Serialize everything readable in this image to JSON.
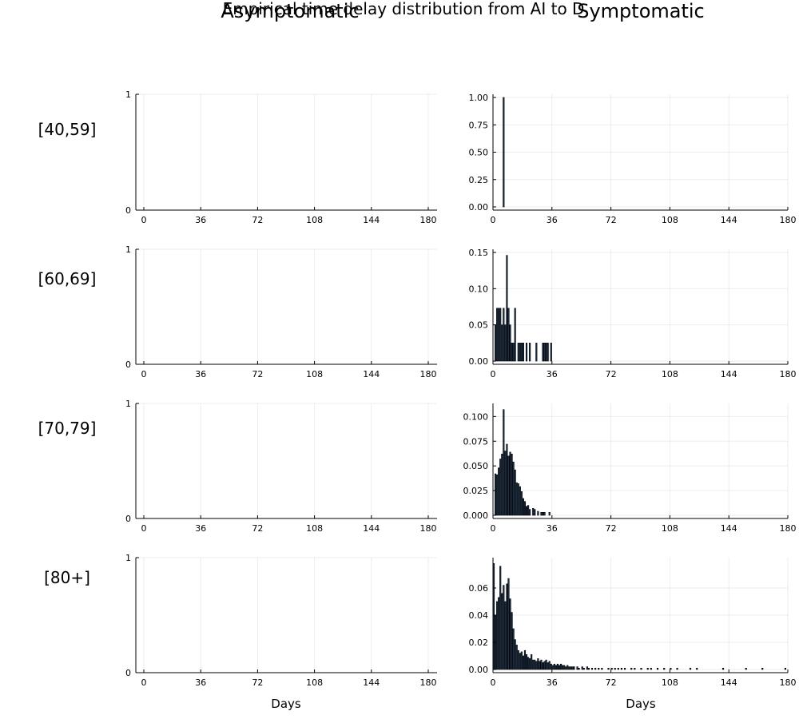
{
  "chart_data": {
    "type": "bar",
    "title": "Empirical time delay distribution from AI to D",
    "column_titles": [
      "Asymptomatic",
      "Symptomatic"
    ],
    "row_labels": [
      "[40,59]",
      "[60,69]",
      "[70,79]",
      "[80+]"
    ],
    "xlabel": "Days",
    "xlim": [
      0,
      180
    ],
    "xticks": [
      0,
      36,
      72,
      108,
      144,
      180
    ],
    "panels": [
      {
        "row": "[40,59]",
        "column": "Asymptomatic",
        "ylim": [
          0,
          1
        ],
        "yticks": [
          0,
          1
        ],
        "ytick_labels": [
          "0",
          "1"
        ],
        "bars": []
      },
      {
        "row": "[40,59]",
        "column": "Symptomatic",
        "ylim": [
          0,
          1.0
        ],
        "yticks": [
          0,
          0.25,
          0.5,
          0.75,
          1.0
        ],
        "ytick_labels": [
          "0.00",
          "0.25",
          "0.50",
          "0.75",
          "1.00"
        ],
        "bars": [
          [
            6,
            1.0
          ]
        ]
      },
      {
        "row": "[60,69]",
        "column": "Asymptomatic",
        "ylim": [
          0,
          1
        ],
        "yticks": [
          0,
          1
        ],
        "ytick_labels": [
          "0",
          "1"
        ],
        "bars": []
      },
      {
        "row": "[60,69]",
        "column": "Symptomatic",
        "ylim": [
          0,
          0.15
        ],
        "yticks": [
          0,
          0.05,
          0.1,
          0.15
        ],
        "ytick_labels": [
          "0.00",
          "0.05",
          "0.10",
          "0.15"
        ],
        "bars": [
          [
            1,
            0.05
          ],
          [
            2,
            0.073
          ],
          [
            3,
            0.073
          ],
          [
            4,
            0.073
          ],
          [
            5,
            0.05
          ],
          [
            6,
            0.073
          ],
          [
            7,
            0.05
          ],
          [
            8,
            0.146
          ],
          [
            9,
            0.073
          ],
          [
            10,
            0.05
          ],
          [
            11,
            0.025
          ],
          [
            12,
            0.025
          ],
          [
            13,
            0.073
          ],
          [
            15,
            0.025
          ],
          [
            16,
            0.025
          ],
          [
            17,
            0.025
          ],
          [
            18,
            0.025
          ],
          [
            20,
            0.025
          ],
          [
            22,
            0.025
          ],
          [
            26,
            0.025
          ],
          [
            30,
            0.025
          ],
          [
            31,
            0.025
          ],
          [
            32,
            0.025
          ],
          [
            33,
            0.025
          ],
          [
            35,
            0.025
          ]
        ]
      },
      {
        "row": "[70,79]",
        "column": "Asymptomatic",
        "ylim": [
          0,
          1
        ],
        "yticks": [
          0,
          1
        ],
        "ytick_labels": [
          "0",
          "1"
        ],
        "bars": []
      },
      {
        "row": "[70,79]",
        "column": "Symptomatic",
        "ylim": [
          0,
          0.11
        ],
        "yticks": [
          0,
          0.025,
          0.05,
          0.075,
          0.1
        ],
        "ytick_labels": [
          "0.000",
          "0.025",
          "0.050",
          "0.075",
          "0.100"
        ],
        "bars": [
          [
            1,
            0.042
          ],
          [
            2,
            0.041
          ],
          [
            3,
            0.048
          ],
          [
            4,
            0.057
          ],
          [
            5,
            0.062
          ],
          [
            6,
            0.107
          ],
          [
            7,
            0.065
          ],
          [
            8,
            0.072
          ],
          [
            9,
            0.06
          ],
          [
            10,
            0.064
          ],
          [
            11,
            0.062
          ],
          [
            12,
            0.054
          ],
          [
            13,
            0.046
          ],
          [
            14,
            0.033
          ],
          [
            15,
            0.032
          ],
          [
            16,
            0.029
          ],
          [
            17,
            0.024
          ],
          [
            18,
            0.017
          ],
          [
            19,
            0.014
          ],
          [
            20,
            0.009
          ],
          [
            21,
            0.01
          ],
          [
            22,
            0.006
          ],
          [
            24,
            0.007
          ],
          [
            25,
            0.006
          ],
          [
            27,
            0.004
          ],
          [
            29,
            0.003
          ],
          [
            30,
            0.003
          ],
          [
            31,
            0.003
          ],
          [
            34,
            0.003
          ]
        ]
      },
      {
        "row": "[80+]",
        "column": "Asymptomatic",
        "ylim": [
          0,
          1
        ],
        "yticks": [
          0,
          1
        ],
        "ytick_labels": [
          "0",
          "1"
        ],
        "bars": []
      },
      {
        "row": "[80+]",
        "column": "Symptomatic",
        "ylim": [
          0,
          0.08
        ],
        "yticks": [
          0,
          0.02,
          0.04,
          0.06
        ],
        "ytick_labels": [
          "0.00",
          "0.02",
          "0.04",
          "0.06"
        ],
        "bars": [
          [
            0,
            0.078
          ],
          [
            1,
            0.04
          ],
          [
            2,
            0.05
          ],
          [
            3,
            0.053
          ],
          [
            4,
            0.076
          ],
          [
            5,
            0.056
          ],
          [
            6,
            0.062
          ],
          [
            7,
            0.05
          ],
          [
            8,
            0.063
          ],
          [
            9,
            0.067
          ],
          [
            10,
            0.052
          ],
          [
            11,
            0.042
          ],
          [
            12,
            0.03
          ],
          [
            13,
            0.022
          ],
          [
            14,
            0.018
          ],
          [
            15,
            0.014
          ],
          [
            16,
            0.012
          ],
          [
            17,
            0.013
          ],
          [
            18,
            0.01
          ],
          [
            19,
            0.014
          ],
          [
            20,
            0.011
          ],
          [
            21,
            0.009
          ],
          [
            22,
            0.008
          ],
          [
            23,
            0.011
          ],
          [
            24,
            0.007
          ],
          [
            25,
            0.007
          ],
          [
            26,
            0.006
          ],
          [
            27,
            0.008
          ],
          [
            28,
            0.006
          ],
          [
            29,
            0.007
          ],
          [
            30,
            0.005
          ],
          [
            31,
            0.006
          ],
          [
            32,
            0.007
          ],
          [
            33,
            0.005
          ],
          [
            34,
            0.006
          ],
          [
            35,
            0.004
          ],
          [
            36,
            0.003
          ],
          [
            37,
            0.004
          ],
          [
            38,
            0.003
          ],
          [
            39,
            0.004
          ],
          [
            40,
            0.003
          ],
          [
            41,
            0.004
          ],
          [
            42,
            0.003
          ],
          [
            43,
            0.003
          ],
          [
            44,
            0.002
          ],
          [
            45,
            0.003
          ],
          [
            46,
            0.002
          ],
          [
            47,
            0.002
          ],
          [
            48,
            0.002
          ],
          [
            49,
            0.002
          ],
          [
            51,
            0.002
          ],
          [
            52,
            0.001
          ],
          [
            54,
            0.002
          ],
          [
            55,
            0.001
          ],
          [
            57,
            0.002
          ],
          [
            58,
            0.001
          ],
          [
            60,
            0.001
          ],
          [
            62,
            0.001
          ],
          [
            64,
            0.001
          ],
          [
            66,
            0.001
          ],
          [
            70,
            0.001
          ],
          [
            72,
            0.001
          ],
          [
            74,
            0.001
          ],
          [
            76,
            0.001
          ],
          [
            78,
            0.001
          ],
          [
            80,
            0.001
          ],
          [
            84,
            0.001
          ],
          [
            86,
            0.001
          ],
          [
            90,
            0.001
          ],
          [
            94,
            0.001
          ],
          [
            96,
            0.001
          ],
          [
            100,
            0.001
          ],
          [
            104,
            0.001
          ],
          [
            108,
            0.001
          ],
          [
            112,
            0.001
          ],
          [
            120,
            0.001
          ],
          [
            124,
            0.001
          ],
          [
            140,
            0.001
          ],
          [
            154,
            0.001
          ],
          [
            164,
            0.001
          ],
          [
            178,
            0.001
          ]
        ]
      }
    ]
  }
}
